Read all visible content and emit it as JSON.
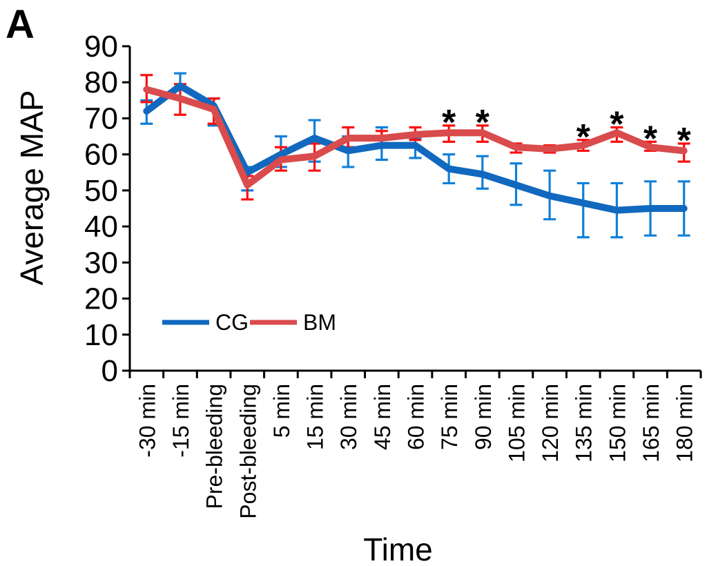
{
  "panel": {
    "label": "A"
  },
  "chart_data": {
    "type": "line",
    "title": "",
    "panel_label": "A",
    "xlabel": "Time",
    "ylabel": "Average MAP",
    "ylim": [
      0,
      90
    ],
    "ytick_step": 10,
    "ytick_labels": [
      "0",
      "10",
      "20",
      "30",
      "40",
      "50",
      "60",
      "70",
      "80",
      "90"
    ],
    "grid": false,
    "legend_position": "inside-left-lower-middle",
    "categories": [
      "-30 min",
      "-15 min",
      "Pre-bleeding",
      "Post-bleeding",
      "5 min",
      "15 min",
      "30 min",
      "45 min",
      "60 min",
      "75 min",
      "90 min",
      "105 min",
      "120 min",
      "135 min",
      "150 min",
      "165 min",
      "180 min"
    ],
    "series": [
      {
        "name": "CG",
        "color": "#1069BE",
        "error_color": "#0F7FD8",
        "values": [
          72,
          79,
          73.5,
          55,
          60,
          64.5,
          61,
          62.5,
          62.5,
          56,
          54.5,
          51.5,
          48.5,
          46.5,
          44.5,
          45,
          45
        ],
        "err_low": [
          68.5,
          75.5,
          68,
          50,
          56.5,
          58,
          56.5,
          58.5,
          59,
          52,
          50.5,
          46,
          42,
          37,
          37,
          37.5,
          37.5
        ],
        "err_high": [
          75,
          82.5,
          75.5,
          56.5,
          65,
          69.5,
          65,
          67.5,
          64.5,
          60,
          59.5,
          57.5,
          55.5,
          52,
          52,
          52.5,
          52.5
        ]
      },
      {
        "name": "BM",
        "color": "#D94B4C",
        "error_color": "#FB0F0F",
        "values": [
          78,
          75.5,
          72.5,
          51.5,
          58.5,
          59.5,
          64.5,
          64.5,
          65.5,
          66,
          66,
          62,
          61.5,
          62.5,
          66,
          62,
          61
        ],
        "err_low": [
          74.5,
          71,
          68.5,
          47.5,
          55.5,
          55.5,
          62,
          62,
          64,
          63.5,
          63.5,
          60.5,
          60.5,
          61,
          63.5,
          61,
          58
        ],
        "err_high": [
          82,
          79.5,
          75.5,
          54,
          62,
          63,
          67.5,
          66.5,
          67.5,
          68,
          68,
          63,
          62.5,
          64,
          67.5,
          63.5,
          63
        ]
      }
    ],
    "significance": {
      "symbol": "*",
      "color": "#000000",
      "on_series": "BM",
      "category_indices": [
        9,
        10,
        13,
        14,
        15,
        16
      ],
      "categories": [
        "75 min",
        "90 min",
        "135 min",
        "150 min",
        "165 min",
        "180 min"
      ]
    }
  }
}
